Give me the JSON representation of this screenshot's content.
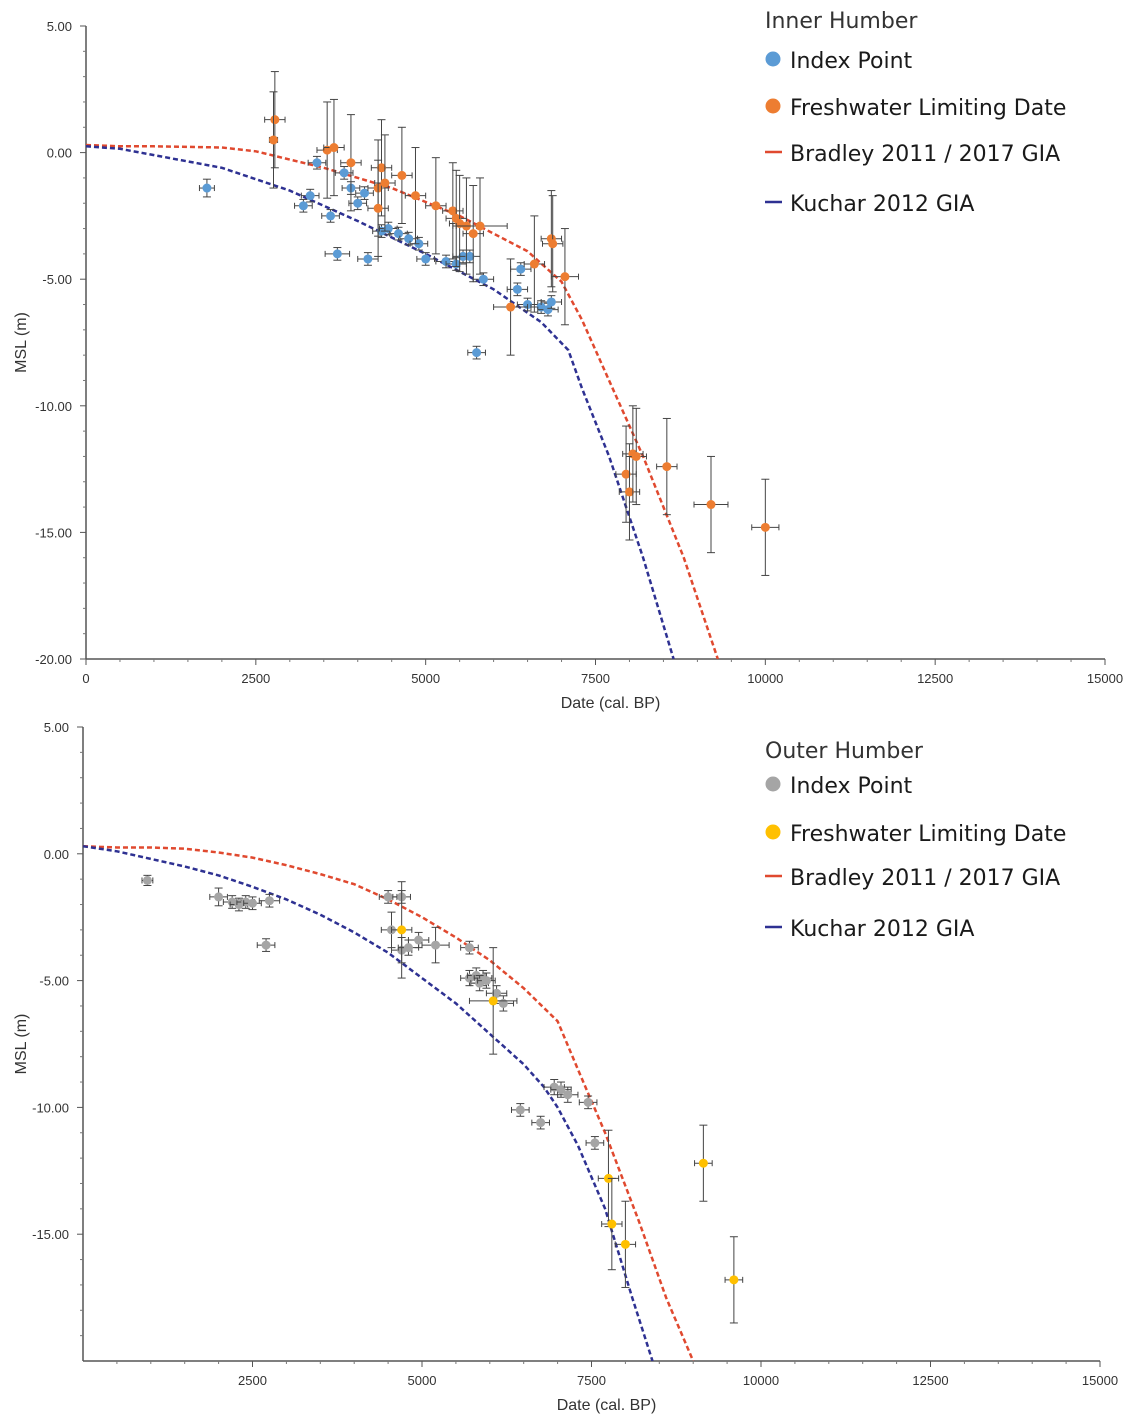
{
  "chart_data": [
    {
      "type": "scatter",
      "title": "Inner Humber",
      "xlabel": "Date (cal. BP)",
      "ylabel": "MSL (m)",
      "xlim": [
        0,
        15000
      ],
      "ylim": [
        -20,
        5
      ],
      "xticks": [
        0,
        2500,
        5000,
        7500,
        10000,
        12500,
        15000
      ],
      "xtick_labels": [
        "0",
        "2500",
        "5000",
        "7500",
        "10000",
        "12500",
        "15000"
      ],
      "yticks": [
        5,
        0,
        -5,
        -10,
        -15,
        -20
      ],
      "ytick_labels": [
        "5.00",
        "0.00",
        "-5.00",
        "-10.00",
        "-15.00",
        "-20.00"
      ],
      "grid": false,
      "legend": "top-right",
      "series": [
        {
          "name": "Index Point",
          "kind": "points",
          "color": "#5b9bd5",
          "points": [
            {
              "x": 1780,
              "y": -1.4,
              "xe": 110,
              "ye": 0.35
            },
            {
              "x": 3200,
              "y": -2.1,
              "xe": 130,
              "ye": 0.25
            },
            {
              "x": 3300,
              "y": -1.7,
              "xe": 130,
              "ye": 0.25
            },
            {
              "x": 3400,
              "y": -0.4,
              "xe": 130,
              "ye": 0.25
            },
            {
              "x": 3600,
              "y": -2.5,
              "xe": 130,
              "ye": 0.25
            },
            {
              "x": 3700,
              "y": -4.0,
              "xe": 180,
              "ye": 0.25
            },
            {
              "x": 3800,
              "y": -0.8,
              "xe": 130,
              "ye": 0.25
            },
            {
              "x": 3900,
              "y": -1.4,
              "xe": 130,
              "ye": 0.25
            },
            {
              "x": 4000,
              "y": -2.0,
              "xe": 130,
              "ye": 0.25
            },
            {
              "x": 4100,
              "y": -1.6,
              "xe": 130,
              "ye": 0.25
            },
            {
              "x": 4150,
              "y": -4.2,
              "xe": 150,
              "ye": 0.25
            },
            {
              "x": 4350,
              "y": -3.1,
              "xe": 130,
              "ye": 0.25
            },
            {
              "x": 4450,
              "y": -3.0,
              "xe": 130,
              "ye": 0.25
            },
            {
              "x": 4600,
              "y": -3.2,
              "xe": 130,
              "ye": 0.25
            },
            {
              "x": 4750,
              "y": -3.4,
              "xe": 130,
              "ye": 0.25
            },
            {
              "x": 4900,
              "y": -3.6,
              "xe": 130,
              "ye": 0.25
            },
            {
              "x": 5000,
              "y": -4.2,
              "xe": 130,
              "ye": 0.25
            },
            {
              "x": 5300,
              "y": -4.3,
              "xe": 150,
              "ye": 0.25
            },
            {
              "x": 5450,
              "y": -4.4,
              "xe": 150,
              "ye": 0.25
            },
            {
              "x": 5550,
              "y": -4.1,
              "xe": 150,
              "ye": 0.25
            },
            {
              "x": 5650,
              "y": -4.1,
              "xe": 150,
              "ye": 0.25
            },
            {
              "x": 5750,
              "y": -7.9,
              "xe": 130,
              "ye": 0.25
            },
            {
              "x": 5850,
              "y": -5.0,
              "xe": 150,
              "ye": 0.25
            },
            {
              "x": 6350,
              "y": -5.4,
              "xe": 150,
              "ye": 0.25
            },
            {
              "x": 6400,
              "y": -4.6,
              "xe": 150,
              "ye": 0.25
            },
            {
              "x": 6500,
              "y": -6.0,
              "xe": 150,
              "ye": 0.25
            },
            {
              "x": 6700,
              "y": -6.1,
              "xe": 150,
              "ye": 0.25
            },
            {
              "x": 6800,
              "y": -6.2,
              "xe": 150,
              "ye": 0.25
            },
            {
              "x": 6850,
              "y": -5.9,
              "xe": 150,
              "ye": 0.25
            }
          ]
        },
        {
          "name": "Freshwater Limiting Date",
          "kind": "points",
          "color": "#ed7d31",
          "points": [
            {
              "x": 2780,
              "y": 1.3,
              "xe": 150,
              "ye": 1.9
            },
            {
              "x": 2760,
              "y": 0.5,
              "xe": 60,
              "ye": 1.9
            },
            {
              "x": 3550,
              "y": 0.1,
              "xe": 150,
              "ye": 1.9
            },
            {
              "x": 3650,
              "y": 0.2,
              "xe": 150,
              "ye": 1.9
            },
            {
              "x": 3900,
              "y": -0.4,
              "xe": 150,
              "ye": 1.9
            },
            {
              "x": 4300,
              "y": -1.4,
              "xe": 150,
              "ye": 1.9
            },
            {
              "x": 4350,
              "y": -0.6,
              "xe": 150,
              "ye": 1.9
            },
            {
              "x": 4300,
              "y": -2.2,
              "xe": 150,
              "ye": 1.9
            },
            {
              "x": 4400,
              "y": -1.2,
              "xe": 150,
              "ye": 1.9
            },
            {
              "x": 4650,
              "y": -0.9,
              "xe": 150,
              "ye": 1.9
            },
            {
              "x": 4850,
              "y": -1.7,
              "xe": 150,
              "ye": 1.9
            },
            {
              "x": 5150,
              "y": -2.1,
              "xe": 150,
              "ye": 1.9
            },
            {
              "x": 5400,
              "y": -2.3,
              "xe": 150,
              "ye": 1.9
            },
            {
              "x": 5450,
              "y": -2.6,
              "xe": 150,
              "ye": 1.9
            },
            {
              "x": 5500,
              "y": -2.8,
              "xe": 150,
              "ye": 1.9
            },
            {
              "x": 5600,
              "y": -2.9,
              "xe": 150,
              "ye": 1.9
            },
            {
              "x": 5700,
              "y": -3.2,
              "xe": 150,
              "ye": 1.9
            },
            {
              "x": 5800,
              "y": -2.9,
              "xe": 400,
              "ye": 1.9
            },
            {
              "x": 6250,
              "y": -6.1,
              "xe": 250,
              "ye": 1.9
            },
            {
              "x": 6600,
              "y": -4.4,
              "xe": 150,
              "ye": 1.9
            },
            {
              "x": 6850,
              "y": -3.4,
              "xe": 150,
              "ye": 1.9
            },
            {
              "x": 6870,
              "y": -3.6,
              "xe": 150,
              "ye": 1.9
            },
            {
              "x": 7050,
              "y": -4.9,
              "xe": 200,
              "ye": 1.9
            },
            {
              "x": 7950,
              "y": -12.7,
              "xe": 150,
              "ye": 1.9
            },
            {
              "x": 8000,
              "y": -13.4,
              "xe": 150,
              "ye": 1.9
            },
            {
              "x": 8050,
              "y": -11.9,
              "xe": 150,
              "ye": 1.9
            },
            {
              "x": 8100,
              "y": -12.0,
              "xe": 150,
              "ye": 1.9
            },
            {
              "x": 8550,
              "y": -12.4,
              "xe": 150,
              "ye": 1.9
            },
            {
              "x": 9200,
              "y": -13.9,
              "xe": 250,
              "ye": 1.9
            },
            {
              "x": 10000,
              "y": -14.8,
              "xe": 200,
              "ye": 1.9
            }
          ]
        },
        {
          "name": "Bradley 2011 / 2017 GIA",
          "kind": "line",
          "color": "#e0492f",
          "x": [
            0,
            500,
            1000,
            2000,
            2500,
            3500,
            4500,
            5500,
            6500,
            7000,
            7300,
            7700,
            8200,
            8800,
            9300
          ],
          "y": [
            0.3,
            0.25,
            0.25,
            0.2,
            0.05,
            -0.6,
            -1.4,
            -2.5,
            -3.9,
            -5.1,
            -6.6,
            -9.0,
            -12.0,
            -16.0,
            -20.0
          ]
        },
        {
          "name": "Kuchar 2012 GIA",
          "kind": "line",
          "color": "#2e3192",
          "x": [
            0,
            500,
            1000,
            2000,
            3000,
            4000,
            5000,
            6000,
            6700,
            7100,
            7300,
            7700,
            8200,
            8650
          ],
          "y": [
            0.25,
            0.15,
            -0.1,
            -0.6,
            -1.5,
            -2.7,
            -4.0,
            -5.4,
            -6.7,
            -7.8,
            -9.3,
            -12.0,
            -16.0,
            -20.0
          ]
        }
      ]
    },
    {
      "type": "scatter",
      "title": "Outer Humber",
      "xlabel": "Date (cal. BP)",
      "ylabel": "MSL (m)",
      "xlim": [
        0,
        15000
      ],
      "ylim": [
        -20,
        5
      ],
      "xticks": [
        2500,
        5000,
        7500,
        10000,
        12500,
        15000
      ],
      "xtick_labels": [
        "2500",
        "5000",
        "7500",
        "10000",
        "12500",
        "15000"
      ],
      "yticks": [
        5,
        0,
        -5,
        -10,
        -15
      ],
      "ytick_labels": [
        "5.00",
        "0.00",
        "-5.00",
        "-10.00",
        "-15.00"
      ],
      "grid": false,
      "legend": "top-right",
      "series": [
        {
          "name": "Index Point",
          "kind": "points",
          "color": "#a5a5a5",
          "points": [
            {
              "x": 950,
              "y": -1.05,
              "xe": 80,
              "ye": 0.2
            },
            {
              "x": 2000,
              "y": -1.7,
              "xe": 130,
              "ye": 0.35
            },
            {
              "x": 2200,
              "y": -1.9,
              "xe": 130,
              "ye": 0.25
            },
            {
              "x": 2300,
              "y": -2.0,
              "xe": 130,
              "ye": 0.25
            },
            {
              "x": 2400,
              "y": -1.9,
              "xe": 130,
              "ye": 0.25
            },
            {
              "x": 2500,
              "y": -1.95,
              "xe": 130,
              "ye": 0.25
            },
            {
              "x": 2750,
              "y": -1.85,
              "xe": 150,
              "ye": 0.25
            },
            {
              "x": 2700,
              "y": -3.6,
              "xe": 130,
              "ye": 0.25
            },
            {
              "x": 4500,
              "y": -1.7,
              "xe": 130,
              "ye": 0.25
            },
            {
              "x": 4700,
              "y": -1.7,
              "xe": 130,
              "ye": 0.25
            },
            {
              "x": 4550,
              "y": -3.0,
              "xe": 150,
              "ye": 0.7
            },
            {
              "x": 4700,
              "y": -3.8,
              "xe": 150,
              "ye": 0.5
            },
            {
              "x": 4800,
              "y": -3.7,
              "xe": 150,
              "ye": 0.3
            },
            {
              "x": 4950,
              "y": -3.4,
              "xe": 150,
              "ye": 0.3
            },
            {
              "x": 5200,
              "y": -3.6,
              "xe": 200,
              "ye": 0.7
            },
            {
              "x": 5700,
              "y": -3.7,
              "xe": 130,
              "ye": 0.25
            },
            {
              "x": 5700,
              "y": -4.9,
              "xe": 130,
              "ye": 0.3
            },
            {
              "x": 5800,
              "y": -4.8,
              "xe": 130,
              "ye": 0.3
            },
            {
              "x": 5900,
              "y": -4.9,
              "xe": 130,
              "ye": 0.3
            },
            {
              "x": 5850,
              "y": -5.1,
              "xe": 130,
              "ye": 0.3
            },
            {
              "x": 5950,
              "y": -5.0,
              "xe": 130,
              "ye": 0.3
            },
            {
              "x": 6100,
              "y": -5.5,
              "xe": 150,
              "ye": 0.3
            },
            {
              "x": 6200,
              "y": -5.9,
              "xe": 150,
              "ye": 0.3
            },
            {
              "x": 6450,
              "y": -10.1,
              "xe": 130,
              "ye": 0.25
            },
            {
              "x": 6750,
              "y": -10.6,
              "xe": 130,
              "ye": 0.25
            },
            {
              "x": 6950,
              "y": -9.2,
              "xe": 150,
              "ye": 0.3
            },
            {
              "x": 7050,
              "y": -9.3,
              "xe": 150,
              "ye": 0.3
            },
            {
              "x": 7150,
              "y": -9.5,
              "xe": 150,
              "ye": 0.3
            },
            {
              "x": 7450,
              "y": -9.8,
              "xe": 130,
              "ye": 0.25
            },
            {
              "x": 7550,
              "y": -11.4,
              "xe": 130,
              "ye": 0.25
            }
          ]
        },
        {
          "name": "Freshwater Limiting Date",
          "kind": "points",
          "color": "#ffc000",
          "points": [
            {
              "x": 4700,
              "y": -3.0,
              "xe": 150,
              "ye": 1.9
            },
            {
              "x": 6050,
              "y": -5.8,
              "xe": 350,
              "ye": 2.1
            },
            {
              "x": 7750,
              "y": -12.8,
              "xe": 150,
              "ye": 1.9
            },
            {
              "x": 7800,
              "y": -14.6,
              "xe": 150,
              "ye": 1.8
            },
            {
              "x": 8000,
              "y": -15.4,
              "xe": 150,
              "ye": 1.7
            },
            {
              "x": 9150,
              "y": -12.2,
              "xe": 130,
              "ye": 1.5
            },
            {
              "x": 9600,
              "y": -16.8,
              "xe": 130,
              "ye": 1.7
            }
          ]
        },
        {
          "name": "Bradley 2011 / 2017 GIA",
          "kind": "line",
          "color": "#e0492f",
          "x": [
            0,
            500,
            1000,
            1500,
            2000,
            2500,
            3000,
            3500,
            4000,
            4500,
            5000,
            5500,
            6000,
            6500,
            7000,
            7300,
            7700,
            8200,
            8600,
            9000
          ],
          "y": [
            0.3,
            0.25,
            0.25,
            0.2,
            0.05,
            -0.15,
            -0.45,
            -0.8,
            -1.2,
            -1.8,
            -2.5,
            -3.3,
            -4.2,
            -5.3,
            -6.6,
            -8.5,
            -11.0,
            -14.5,
            -17.5,
            -20.0
          ]
        },
        {
          "name": "Kuchar 2012 GIA",
          "kind": "line",
          "color": "#2e3192",
          "x": [
            0,
            500,
            1000,
            1500,
            2000,
            2500,
            3000,
            3500,
            4000,
            4500,
            5000,
            5500,
            6000,
            6500,
            6800,
            7000,
            7300,
            7700,
            8100,
            8400
          ],
          "y": [
            0.3,
            0.1,
            -0.2,
            -0.5,
            -0.85,
            -1.3,
            -1.8,
            -2.4,
            -3.1,
            -3.9,
            -4.9,
            -5.9,
            -7.1,
            -8.3,
            -9.2,
            -10.0,
            -11.5,
            -14.0,
            -17.5,
            -20.0
          ]
        }
      ]
    }
  ]
}
